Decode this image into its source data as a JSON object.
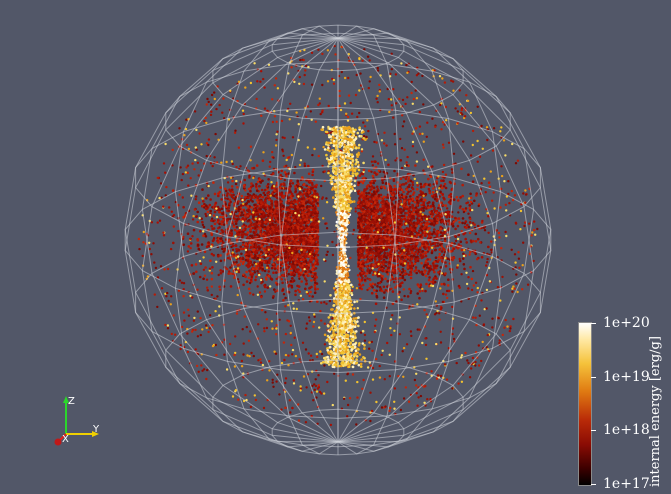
{
  "viewport": {
    "background": "#525768"
  },
  "colorbar": {
    "title": "internal energy [erg/g]",
    "scale": "log",
    "range": [
      1e+17,
      1e+20
    ],
    "tick_labels": [
      "1e+20",
      "1e+19",
      "1e+18",
      "1e+17"
    ],
    "colormap": "black-body (black → red → orange → yellow → white)"
  },
  "orientation_axes": {
    "labels": {
      "z": "Z",
      "x": "X",
      "y": "Y"
    },
    "colors": {
      "z": "#2bd62b",
      "x": "#e02020",
      "y": "#f0d000"
    }
  },
  "scene": {
    "wireframe": "sphere mesh",
    "particles": "scatter of fluid elements colored by internal energy"
  }
}
